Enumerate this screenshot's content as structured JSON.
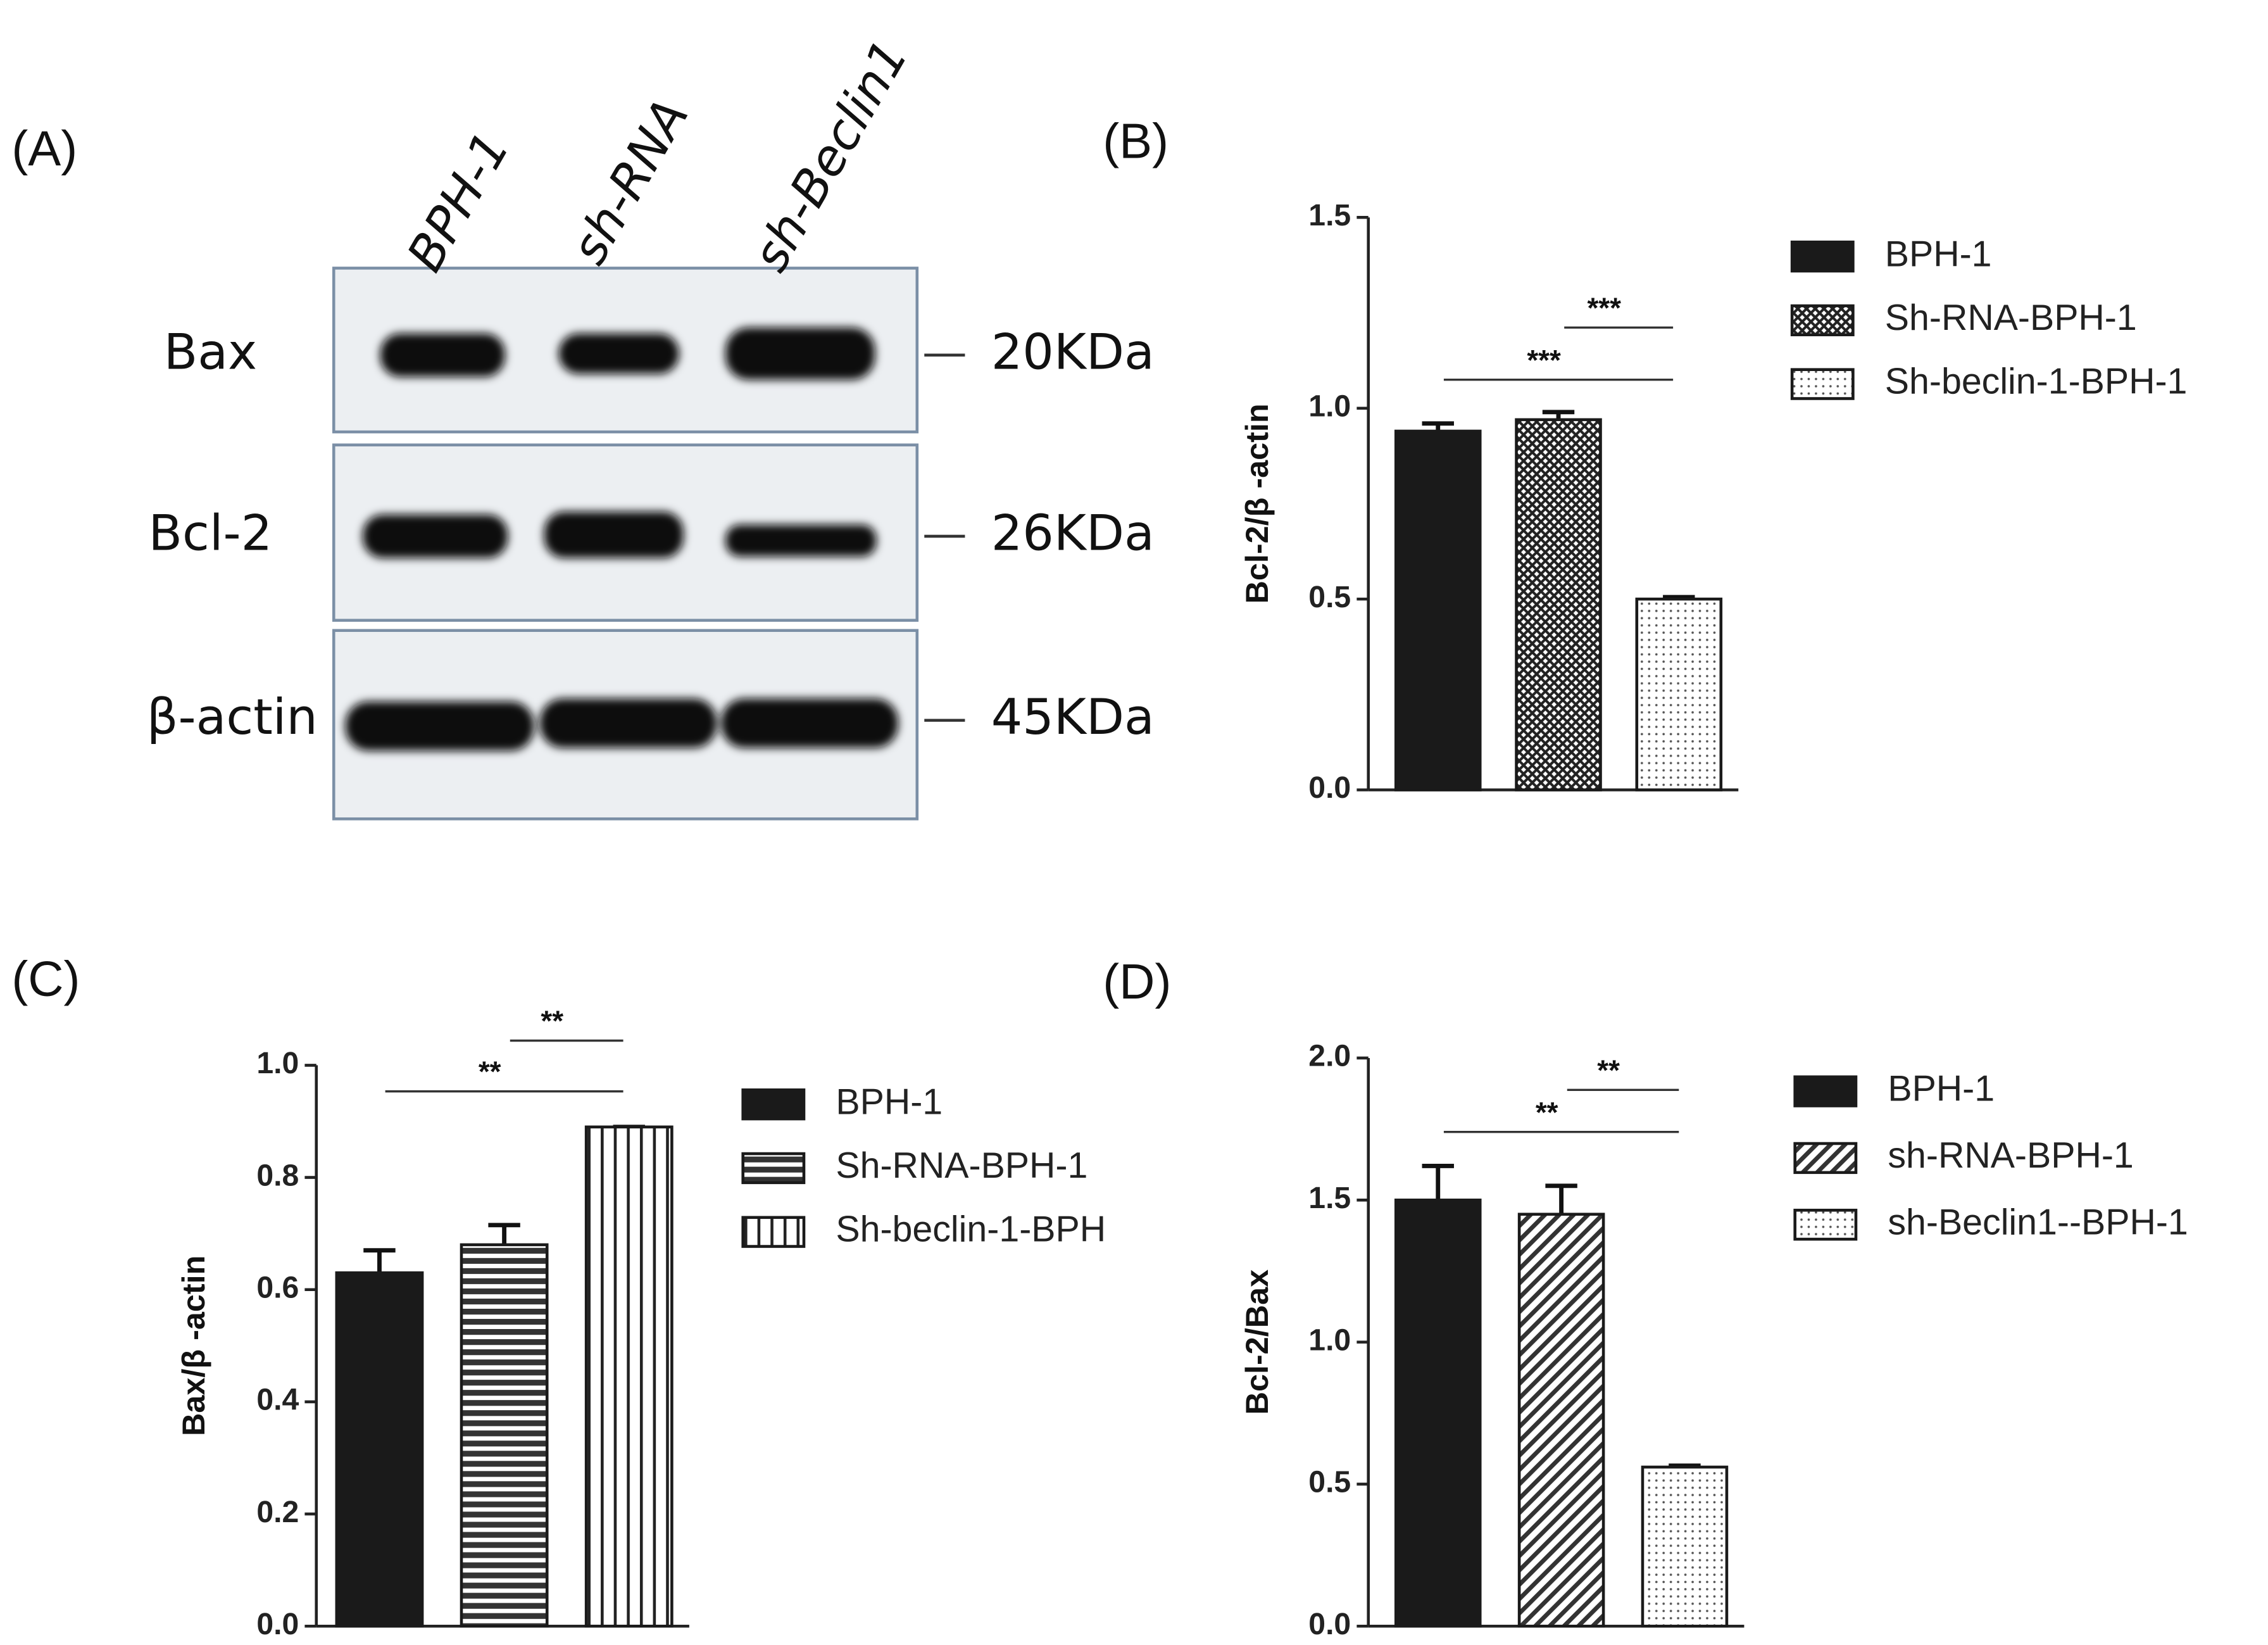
{
  "blot": {
    "panel": "(A)",
    "lanes": [
      "BPH-1",
      "sh-RNA",
      "sh-Beclin1"
    ],
    "rows": [
      {
        "label": "Bax",
        "size": "20KDa"
      },
      {
        "label": "Bcl-2",
        "size": "26KDa"
      },
      {
        "label": "β-actin",
        "size": "45KDa"
      }
    ]
  },
  "chart_data": [
    {
      "type": "bar",
      "panel": "(B)",
      "ylabel": "Bcl-2/β -actin",
      "categories": [
        null
      ],
      "ylim": [
        0,
        1.5
      ],
      "yticks": [
        {
          "value": 0,
          "label": "0.0"
        },
        {
          "value": 0.5,
          "label": "0.5"
        },
        {
          "value": 1,
          "label": "1.0"
        },
        {
          "value": 1.5,
          "label": "1.5"
        }
      ],
      "series": [
        {
          "name": "BPH-1",
          "color": "#1a1a1a",
          "pattern": "solid",
          "values": [
            0.94
          ],
          "errors": [
            0.02
          ]
        },
        {
          "name": "Sh-RNA-BPH-1",
          "color": "#1a1a1a",
          "pattern": "crosshatch",
          "values": [
            0.97
          ],
          "errors": [
            0.02
          ]
        },
        {
          "name": "Sh-beclin-1-BPH-1",
          "color": "#1a1a1a",
          "pattern": "dots",
          "values": [
            0.5
          ],
          "errors": [
            0.005
          ]
        }
      ],
      "annotations": [
        "***",
        "***"
      ]
    },
    {
      "type": "bar",
      "panel": "(C)",
      "ylabel": "Bax/β -actin",
      "categories": [
        null
      ],
      "ylim": [
        0,
        1
      ],
      "yticks": [
        {
          "value": 0,
          "label": "0.0"
        },
        {
          "value": 0.2,
          "label": "0.2"
        },
        {
          "value": 0.4,
          "label": "0.4"
        },
        {
          "value": 0.6,
          "label": "0.6"
        },
        {
          "value": 0.8,
          "label": "0.8"
        },
        {
          "value": 1,
          "label": "1.0"
        }
      ],
      "series": [
        {
          "name": "BPH-1",
          "color": "#1a1a1a",
          "pattern": "solid",
          "values": [
            0.63
          ],
          "errors": [
            0.04
          ]
        },
        {
          "name": "Sh-RNA-BPH-1",
          "color": "#1a1a1a",
          "pattern": "hstripes",
          "values": [
            0.68
          ],
          "errors": [
            0.035
          ]
        },
        {
          "name": "Sh-beclin-1-BPH",
          "color": "#1a1a1a",
          "pattern": "vstripes",
          "values": [
            0.89
          ],
          "errors": [
            0
          ]
        }
      ],
      "annotations": [
        "**",
        "**"
      ]
    },
    {
      "type": "bar",
      "panel": "(D)",
      "ylabel": "Bcl-2/Bax",
      "categories": [
        null
      ],
      "ylim": [
        0,
        2
      ],
      "yticks": [
        {
          "value": 0,
          "label": "0.0"
        },
        {
          "value": 0.5,
          "label": "0.5"
        },
        {
          "value": 1,
          "label": "1.0"
        },
        {
          "value": 1.5,
          "label": "1.5"
        },
        {
          "value": 2,
          "label": "2.0"
        }
      ],
      "series": [
        {
          "name": "BPH-1",
          "color": "#1a1a1a",
          "pattern": "solid",
          "values": [
            1.5
          ],
          "errors": [
            0.12
          ]
        },
        {
          "name": "sh-RNA-BPH-1",
          "color": "#1a1a1a",
          "pattern": "diagonal",
          "values": [
            1.45
          ],
          "errors": [
            0.1
          ]
        },
        {
          "name": "sh-Beclin1--BPH-1",
          "color": "#1a1a1a",
          "pattern": "dots",
          "values": [
            0.56
          ],
          "errors": [
            0.005
          ]
        }
      ],
      "annotations": [
        "**",
        "**"
      ]
    }
  ]
}
